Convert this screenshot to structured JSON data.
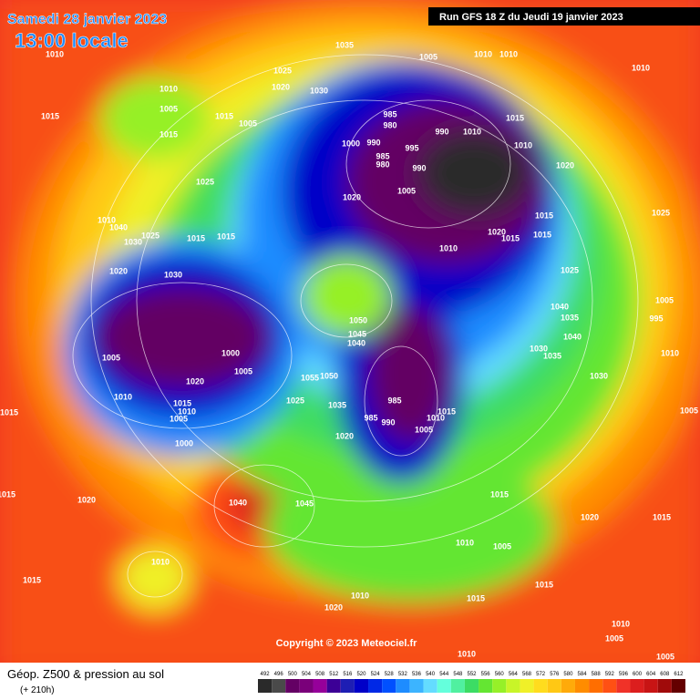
{
  "header": {
    "date": "Samedi 28 janvier 2023",
    "time": "13:00 locale",
    "run": "Run GFS 18 Z du Jeudi 19 janvier 2023"
  },
  "copyright": "Copyright © 2023 Meteociel.fr",
  "footer": {
    "title": "Géop. Z500 & pression au sol",
    "lead": "(+ 210h)"
  },
  "scale": {
    "values": [
      492,
      496,
      500,
      504,
      508,
      512,
      516,
      520,
      524,
      528,
      532,
      536,
      540,
      544,
      548,
      552,
      556,
      560,
      564,
      568,
      572,
      576,
      580,
      584,
      588,
      592,
      596,
      600,
      604,
      608,
      612
    ],
    "colors": [
      "#2a2a2a",
      "#4a4a4a",
      "#640064",
      "#7a007a",
      "#96009a",
      "#3c0096",
      "#1e1eb4",
      "#0000c8",
      "#0028e6",
      "#0050ff",
      "#1e8cff",
      "#3cb4ff",
      "#64dcff",
      "#64ffdc",
      "#50f0a0",
      "#3cdc64",
      "#64e632",
      "#96f028",
      "#c8f528",
      "#f0f028",
      "#ffdc1e",
      "#ffc814",
      "#ffaa0a",
      "#ff8c00",
      "#ff6e00",
      "#ff5014",
      "#f03228",
      "#dc1e1e",
      "#c81414",
      "#a00a0a",
      "#640000"
    ]
  },
  "isobar_labels": [
    1035,
    1005,
    1010,
    1010,
    1010,
    1010,
    1025,
    1020,
    1030,
    1010,
    1005,
    1015,
    1015,
    1015,
    1005,
    985,
    980,
    990,
    1010,
    1015,
    1000,
    990,
    995,
    1010,
    985,
    980,
    990,
    1020,
    1025,
    1005,
    1020,
    1025,
    1015,
    1010,
    1040,
    1025,
    1030,
    1015,
    1015,
    1020,
    1015,
    1015,
    1010,
    1020,
    1030,
    1025,
    1005,
    1040,
    1050,
    1035,
    995,
    1045,
    1040,
    1040,
    1000,
    1030,
    1005,
    1035,
    1010,
    1005,
    1030,
    1055,
    1020,
    1050,
    1025,
    1015,
    1010,
    985,
    1035,
    1010,
    1015,
    1010,
    1015,
    1005,
    985,
    990,
    1005,
    1005,
    1020,
    1000,
    1015,
    1015,
    1020,
    1040,
    1045,
    1020,
    1015,
    1010,
    1005,
    1010,
    1015,
    1015,
    1010,
    1015,
    1020,
    1010,
    1005,
    1010,
    1005
  ]
}
